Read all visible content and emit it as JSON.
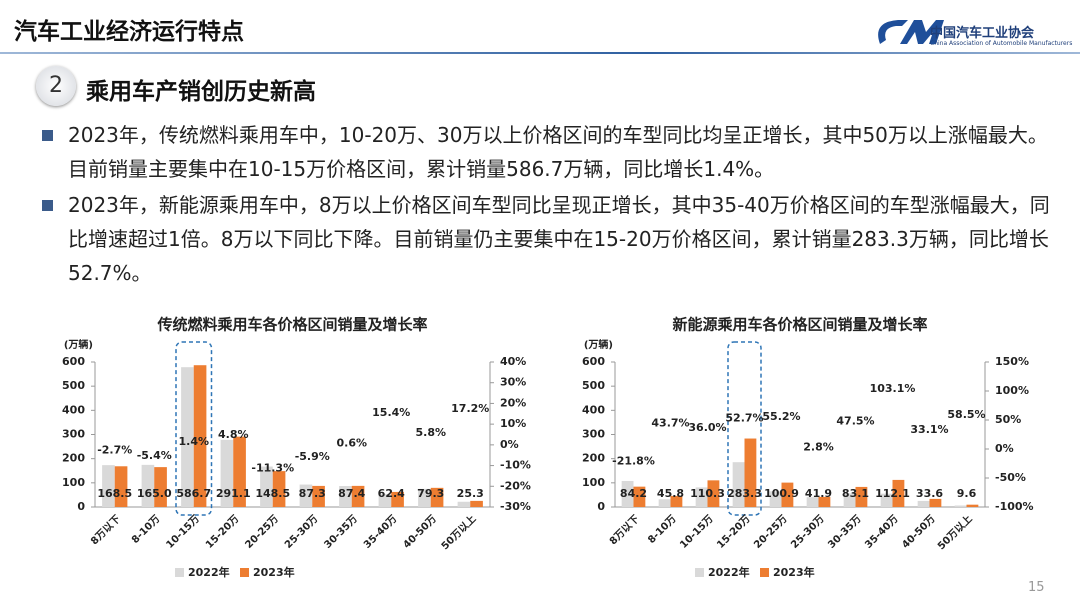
{
  "header": {
    "title": "汽车工业经济运行特点",
    "org_name": "中国汽车工业协会",
    "org_name_en": "China Association of Automobile Manufacturers"
  },
  "section": {
    "number": "2",
    "title": "乘用车产销创历史新高"
  },
  "bullets": [
    "2023年，传统燃料乘用车中，10-20万、30万以上价格区间的车型同比均呈正增长，其中50万以上涨幅最大。目前销量主要集中在10-15万价格区间，累计销量586.7万辆，同比增长1.4%。",
    "2023年，新能源乘用车中，8万以上价格区间车型同比呈现正增长，其中35-40万价格区间的车型涨幅最大，同比增速超过1倍。8万以下同比下降。目前销量仍主要集中在15-20万价格区间，累计销量283.3万辆，同比增长52.7%。"
  ],
  "page_number": "15",
  "chart_data": [
    {
      "type": "bar",
      "title": "传统燃料乘用车各价格区间销量及增长率",
      "y_label": "(万辆)",
      "categories": [
        "8万以下",
        "8-10万",
        "10-15万",
        "15-20万",
        "20-25万",
        "25-30万",
        "30-35万",
        "35-40万",
        "40-50万",
        "50万以上"
      ],
      "series": [
        {
          "name": "2022年",
          "color": "#d9d9d9",
          "values": [
            173.2,
            174.4,
            578.6,
            277.8,
            167.4,
            92.8,
            86.9,
            54.1,
            75.0,
            21.6
          ]
        },
        {
          "name": "2023年",
          "color": "#ed7d31",
          "values": [
            168.5,
            165.0,
            586.7,
            291.1,
            148.5,
            87.3,
            87.4,
            62.4,
            79.3,
            25.3
          ],
          "value_labels": [
            "168.5",
            "165.0",
            "586.7",
            "291.1",
            "148.5",
            "87.3",
            "87.4",
            "62.4",
            "79.3",
            "25.3"
          ]
        },
        {
          "axis": "y2",
          "color": "#333333",
          "negative_color": "#e02020",
          "values": [
            -2.7,
            -5.4,
            1.4,
            4.8,
            -11.3,
            -5.9,
            0.6,
            15.4,
            5.8,
            17.2
          ],
          "value_labels": [
            "-2.7%",
            "-5.4%",
            "1.4%",
            "4.8%",
            "-11.3%",
            "-5.9%",
            "0.6%",
            "15.4%",
            "5.8%",
            "17.2%"
          ]
        }
      ],
      "ylim": [
        0,
        600
      ],
      "yticks": [
        0,
        100,
        200,
        300,
        400,
        500,
        600
      ],
      "y2lim": [
        -30,
        40
      ],
      "y2ticks": [
        {
          "value": -30,
          "label": "-30%"
        },
        {
          "value": -20,
          "label": "-20%"
        },
        {
          "value": -10,
          "label": "-10%"
        },
        {
          "value": 0,
          "label": "0%"
        },
        {
          "value": 10,
          "label": "10%"
        },
        {
          "value": 20,
          "label": "20%"
        },
        {
          "value": 30,
          "label": "30%"
        },
        {
          "value": 40,
          "label": "40%"
        }
      ]
    },
    {
      "type": "bar",
      "title": "新能源乘用车各价格区间销量及增长率",
      "y_label": "(万辆)",
      "categories": [
        "8万以下",
        "8-10万",
        "10-15万",
        "15-20万",
        "20-25万",
        "25-30万",
        "30-35万",
        "35-40万",
        "40-50万",
        "50万以上"
      ],
      "series": [
        {
          "name": "2022年",
          "color": "#d9d9d9",
          "values": [
            107.7,
            31.9,
            81.1,
            185.5,
            65.0,
            40.8,
            56.3,
            55.2,
            25.2,
            6.1
          ]
        },
        {
          "name": "2023年",
          "color": "#ed7d31",
          "values": [
            84.2,
            45.8,
            110.3,
            283.3,
            100.9,
            41.9,
            83.1,
            112.1,
            33.6,
            9.6
          ],
          "value_labels": [
            "84.2",
            "45.8",
            "110.3",
            "283.3",
            "100.9",
            "41.9",
            "83.1",
            "112.1",
            "33.6",
            "9.6"
          ]
        },
        {
          "axis": "y2",
          "color": "#333333",
          "negative_color": "#e02020",
          "values": [
            -21.8,
            43.7,
            36.0,
            52.7,
            55.2,
            2.8,
            47.5,
            103.1,
            33.1,
            58.5
          ],
          "value_labels": [
            "-21.8%",
            "43.7%",
            "36.0%",
            "52.7%",
            "55.2%",
            "2.8%",
            "47.5%",
            "103.1%",
            "33.1%",
            "58.5%"
          ]
        }
      ],
      "ylim": [
        0,
        600
      ],
      "yticks": [
        0,
        100,
        200,
        300,
        400,
        500,
        600
      ],
      "y2lim": [
        -100,
        150
      ],
      "y2ticks": [
        {
          "value": -100,
          "label": "-100%"
        },
        {
          "value": -50,
          "label": "-50%"
        },
        {
          "value": 0,
          "label": "0%"
        },
        {
          "value": 50,
          "label": "50%"
        },
        {
          "value": 100,
          "label": "100%"
        },
        {
          "value": 150,
          "label": "150%"
        }
      ]
    }
  ]
}
